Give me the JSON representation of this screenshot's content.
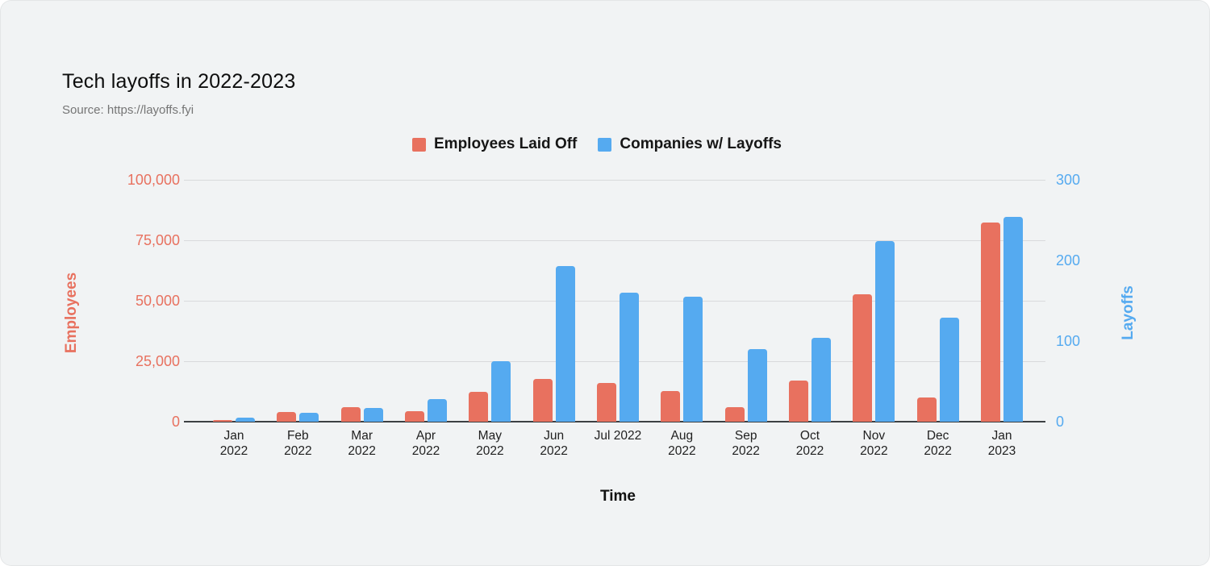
{
  "card": {
    "title": "Tech layoffs in 2022-2023",
    "source": "Source: https://layoffs.fyi"
  },
  "chart_data": {
    "type": "bar",
    "title": "Tech layoffs in 2022-2023",
    "subtitle": "Source: https://layoffs.fyi",
    "xlabel": "Time",
    "ylabel_left": "Employees",
    "ylabel_right": "Layoffs",
    "legend_position": "top",
    "grid": true,
    "categories": [
      "Jan\n2022",
      "Feb\n2022",
      "Mar\n2022",
      "Apr\n2022",
      "May\n2022",
      "Jun\n2022",
      "Jul 2022",
      "Aug\n2022",
      "Sep\n2022",
      "Oct\n2022",
      "Nov\n2022",
      "Dec\n2022",
      "Jan\n2023"
    ],
    "series": [
      {
        "name": "Employees Laid Off",
        "axis": "left",
        "color": "#e8715f",
        "values": [
          700,
          3900,
          5900,
          4200,
          12400,
          17800,
          16000,
          12700,
          5900,
          17000,
          52700,
          10000,
          82500
        ]
      },
      {
        "name": "Companies w/ Layoffs",
        "axis": "right",
        "color": "#55aaf0",
        "values": [
          5,
          11,
          17,
          28,
          75,
          193,
          160,
          155,
          90,
          104,
          224,
          129,
          254
        ]
      }
    ],
    "left_axis": {
      "title": "Employees",
      "min": 0,
      "max": 100000,
      "tick_labels": [
        "100,000",
        "75,000",
        "50,000",
        "25,000",
        "0"
      ],
      "color": "#e8715f"
    },
    "right_axis": {
      "title": "Layoffs",
      "min": 0,
      "max": 300,
      "tick_labels": [
        "300",
        "200",
        "100",
        "0"
      ],
      "color": "#55aaf0"
    }
  }
}
